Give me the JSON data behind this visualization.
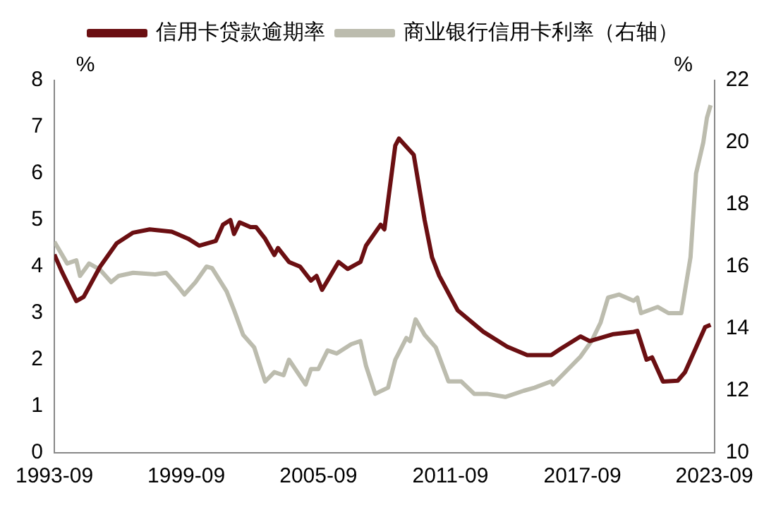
{
  "chart_data": {
    "type": "line",
    "ylabel": "%",
    "y2label": "%",
    "legend": "top",
    "grid": false,
    "marker": "none",
    "line_style": "solid",
    "xlim": [
      "1993-09",
      "2023-09"
    ],
    "xticks": [
      "1993-09",
      "1999-09",
      "2005-09",
      "2011-09",
      "2017-09",
      "2023-09"
    ],
    "ylim": [
      0,
      8
    ],
    "yticks": [
      0,
      1,
      2,
      3,
      4,
      5,
      6,
      7,
      8
    ],
    "y2lim": [
      10,
      22
    ],
    "y2ticks": [
      10,
      12,
      14,
      16,
      18,
      20,
      22
    ],
    "series": [
      {
        "name": "信用卡贷款逾期率",
        "color": "#6b0f12",
        "x": [
          "1993-09",
          "1994-01",
          "1994-09",
          "1995-01",
          "1995-10",
          "1996-07",
          "1997-04",
          "1998-01",
          "1999-01",
          "1999-10",
          "2000-04",
          "2001-01",
          "2001-05",
          "2001-09",
          "2001-11",
          "2002-02",
          "2002-08",
          "2002-11",
          "2003-04",
          "2003-09",
          "2003-11",
          "2004-05",
          "2004-11",
          "2005-05",
          "2005-08",
          "2005-11",
          "2006-08",
          "2007-01",
          "2007-08",
          "2007-11",
          "2008-07",
          "2008-09",
          "2009-03",
          "2009-05",
          "2010-01",
          "2010-07",
          "2010-11",
          "2011-03",
          "2012-01",
          "2013-03",
          "2014-04",
          "2015-03",
          "2016-04",
          "2016-09",
          "2017-08",
          "2018-01",
          "2019-02",
          "2020-01",
          "2020-03",
          "2020-08",
          "2020-11",
          "2021-05",
          "2022-01",
          "2022-05",
          "2023-04",
          "2023-07"
        ],
        "values": [
          4.26,
          3.9,
          3.26,
          3.35,
          4.0,
          4.5,
          4.73,
          4.8,
          4.75,
          4.6,
          4.45,
          4.55,
          4.9,
          5.0,
          4.7,
          4.95,
          4.85,
          4.85,
          4.6,
          4.25,
          4.4,
          4.1,
          4.0,
          3.7,
          3.8,
          3.5,
          4.1,
          3.95,
          4.1,
          4.45,
          4.9,
          4.8,
          6.6,
          6.75,
          6.4,
          5.0,
          4.2,
          3.8,
          3.06,
          2.6,
          2.28,
          2.1,
          2.1,
          2.23,
          2.5,
          2.4,
          2.55,
          2.6,
          2.62,
          2.0,
          2.05,
          1.53,
          1.55,
          1.73,
          2.7,
          2.75
        ]
      },
      {
        "name": "商业银行信用卡利率（右轴）",
        "color": "#bcbcae",
        "axis": "y2",
        "x": [
          "1993-09",
          "1994-01",
          "1994-04",
          "1994-09",
          "1994-11",
          "1995-04",
          "1995-10",
          "1996-04",
          "1996-08",
          "1997-04",
          "1998-04",
          "1998-10",
          "1999-04",
          "1999-08",
          "2000-02",
          "2000-08",
          "2000-11",
          "2001-07",
          "2001-11",
          "2002-04",
          "2002-10",
          "2003-04",
          "2003-09",
          "2004-02",
          "2004-05",
          "2005-02",
          "2005-05",
          "2005-09",
          "2006-02",
          "2006-07",
          "2007-03",
          "2007-08",
          "2007-11",
          "2008-04",
          "2008-11",
          "2009-03",
          "2009-09",
          "2009-11",
          "2010-02",
          "2010-07",
          "2011-01",
          "2011-08",
          "2012-03",
          "2012-10",
          "2013-05",
          "2014-03",
          "2015-01",
          "2015-07",
          "2016-04",
          "2016-05",
          "2016-10",
          "2017-08",
          "2018-02",
          "2018-07",
          "2018-11",
          "2019-05",
          "2020-01",
          "2020-03",
          "2020-05",
          "2021-02",
          "2021-08",
          "2022-03",
          "2022-08",
          "2022-11",
          "2023-03",
          "2023-05",
          "2023-07"
        ],
        "values": [
          16.8,
          16.4,
          16.1,
          16.2,
          15.7,
          16.1,
          15.9,
          15.5,
          15.7,
          15.8,
          15.75,
          15.8,
          15.4,
          15.1,
          15.5,
          16.0,
          15.95,
          15.2,
          14.6,
          13.8,
          13.4,
          12.3,
          12.6,
          12.5,
          13.0,
          12.2,
          12.7,
          12.7,
          13.3,
          13.2,
          13.5,
          13.6,
          12.8,
          11.9,
          12.1,
          13.0,
          13.7,
          13.6,
          14.3,
          13.8,
          13.4,
          12.3,
          12.3,
          11.9,
          11.9,
          11.8,
          12.0,
          12.1,
          12.3,
          12.2,
          12.5,
          13.1,
          13.6,
          14.2,
          15.0,
          15.1,
          14.9,
          15.0,
          14.5,
          14.7,
          14.5,
          14.5,
          16.3,
          19.0,
          20.0,
          20.8,
          21.2
        ]
      }
    ]
  }
}
